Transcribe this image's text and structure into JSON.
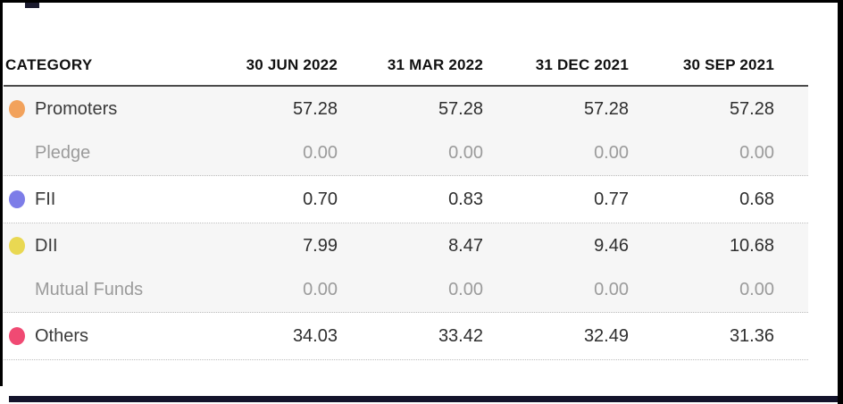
{
  "table": {
    "header": {
      "category_label": "CATEGORY",
      "columns": [
        "30 JUN 2022",
        "31 MAR 2022",
        "31 DEC 2021",
        "30 SEP 2021"
      ]
    },
    "rows": [
      {
        "label": "Promoters",
        "type": "main",
        "dot": "promoters",
        "values": [
          "57.28",
          "57.28",
          "57.28",
          "57.28"
        ]
      },
      {
        "label": "Pledge",
        "type": "sub",
        "dot": null,
        "values": [
          "0.00",
          "0.00",
          "0.00",
          "0.00"
        ]
      },
      {
        "label": "FII",
        "type": "main",
        "dot": "fii",
        "values": [
          "0.70",
          "0.83",
          "0.77",
          "0.68"
        ]
      },
      {
        "label": "DII",
        "type": "main",
        "dot": "dii",
        "values": [
          "7.99",
          "8.47",
          "9.46",
          "10.68"
        ]
      },
      {
        "label": "Mutual Funds",
        "type": "sub",
        "dot": null,
        "values": [
          "0.00",
          "0.00",
          "0.00",
          "0.00"
        ]
      },
      {
        "label": "Others",
        "type": "main",
        "dot": "others",
        "values": [
          "34.03",
          "33.42",
          "32.49",
          "31.36"
        ]
      }
    ]
  },
  "colors": {
    "dots": {
      "promoters": "#f2a25c",
      "fii": "#7d7de8",
      "dii": "#e9d852",
      "others": "#f04a73"
    },
    "row_shade": "#f6f6f6",
    "header_rule": "#4a4a4a",
    "dotted_rule": "#bdbdbd",
    "frame": "#000000",
    "bottom_bar": "#14142b",
    "sub_text": "#9b9b9b",
    "main_text": "#2e2e2e"
  }
}
